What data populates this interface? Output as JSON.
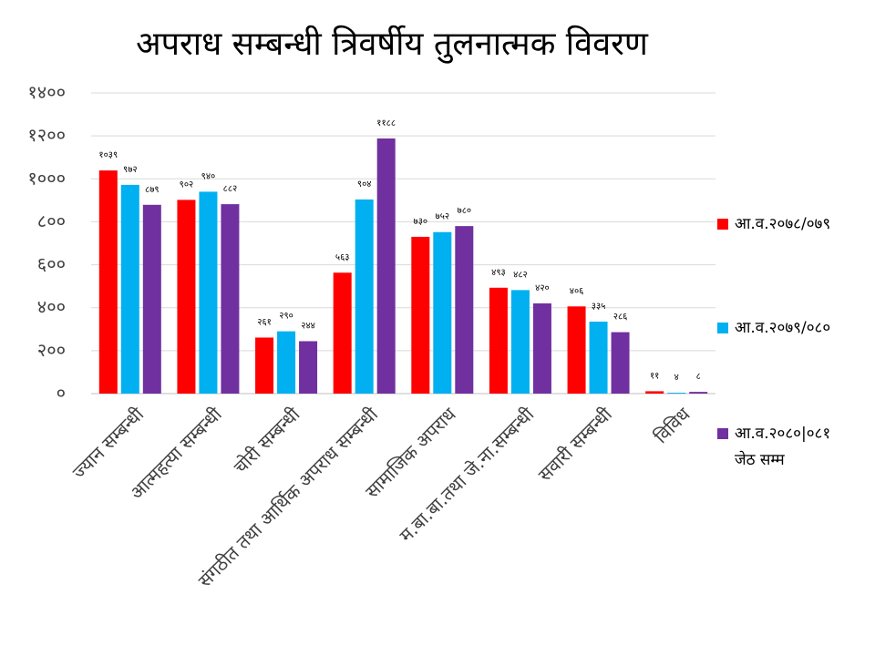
{
  "chart_data": {
    "type": "bar",
    "title": "अपराध सम्बन्धी त्रिवर्षीय तुलनात्मक विवरण",
    "categories": [
      "ज्यान सम्बन्धी",
      "आत्महत्या सम्बन्धी",
      "चोरी सम्बन्धी",
      "संगठीत तथा आर्थिक अपराध सम्बन्धी",
      "सामाजिक अपराध",
      "म.बा.बा.तथा जे.ना.सम्बन्धी",
      "सवारी सम्बन्धी",
      "विविध"
    ],
    "series": [
      {
        "name": "आ.व.२०७८/०७९",
        "color": "#ff0000",
        "values": [
          1039,
          902,
          261,
          563,
          730,
          493,
          406,
          11
        ],
        "labels": [
          "१०३९",
          "९०२",
          "२६१",
          "५६३",
          "७३०",
          "४९३",
          "४०६",
          "११"
        ]
      },
      {
        "name": "आ.व.२०७९/०८०",
        "color": "#00b0f0",
        "values": [
          972,
          940,
          290,
          904,
          752,
          482,
          335,
          4
        ],
        "labels": [
          "९७२",
          "९४०",
          "२९०",
          "९०४",
          "७५२",
          "४८२",
          "३३५",
          "४"
        ]
      },
      {
        "name": "आ.व.२०८०|०८१",
        "name_line2": "जेठ सम्म",
        "color": "#7030a0",
        "values": [
          879,
          882,
          244,
          1188,
          780,
          420,
          286,
          8
        ],
        "labels": [
          "८७९",
          "८८२",
          "२४४",
          "११८८",
          "७८०",
          "४२०",
          "२८६",
          "८"
        ]
      }
    ],
    "yticks": [
      0,
      200,
      400,
      600,
      800,
      1000,
      1200,
      1400
    ],
    "ytick_labels": [
      "०",
      "२००",
      "४००",
      "६००",
      "८००",
      "१०००",
      "१२००",
      "१४००"
    ],
    "ylim": [
      0,
      1400
    ],
    "grid": true,
    "legend": "right"
  }
}
